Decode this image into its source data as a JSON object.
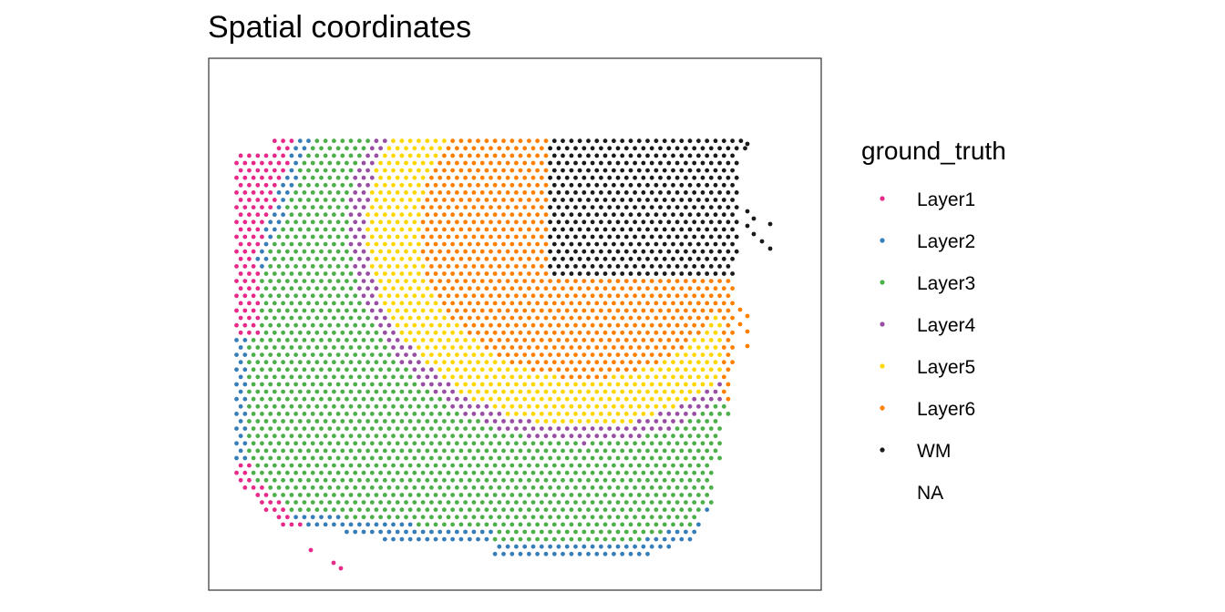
{
  "chart_data": {
    "type": "scatter",
    "title": "Spatial coordinates",
    "xlabel": "",
    "ylabel": "",
    "grid": false,
    "axes_visible": false,
    "legend_position": "right",
    "legend": {
      "title": "ground_truth",
      "items": [
        {
          "label": "Layer1",
          "color": "#e7298a"
        },
        {
          "label": "Layer2",
          "color": "#377eb8"
        },
        {
          "label": "Layer3",
          "color": "#4daf4a"
        },
        {
          "label": "Layer4",
          "color": "#984ea3"
        },
        {
          "label": "Layer5",
          "color": "#ffd700"
        },
        {
          "label": "Layer6",
          "color": "#ff7f00"
        },
        {
          "label": "WM",
          "color": "#1a1a1a"
        },
        {
          "label": "NA",
          "color": ""
        }
      ]
    },
    "point_layout": "hexagonal spot grid; spots colored by ground_truth layer",
    "region_shape": "tissue section spots; Layer1 strip along left/bottom-left edge, Layer2 thin band inside it, Layer3 wide band, Layer4 thin curved band, Layer5 curved band, Layer6 inner region, WM cluster at top-right"
  }
}
